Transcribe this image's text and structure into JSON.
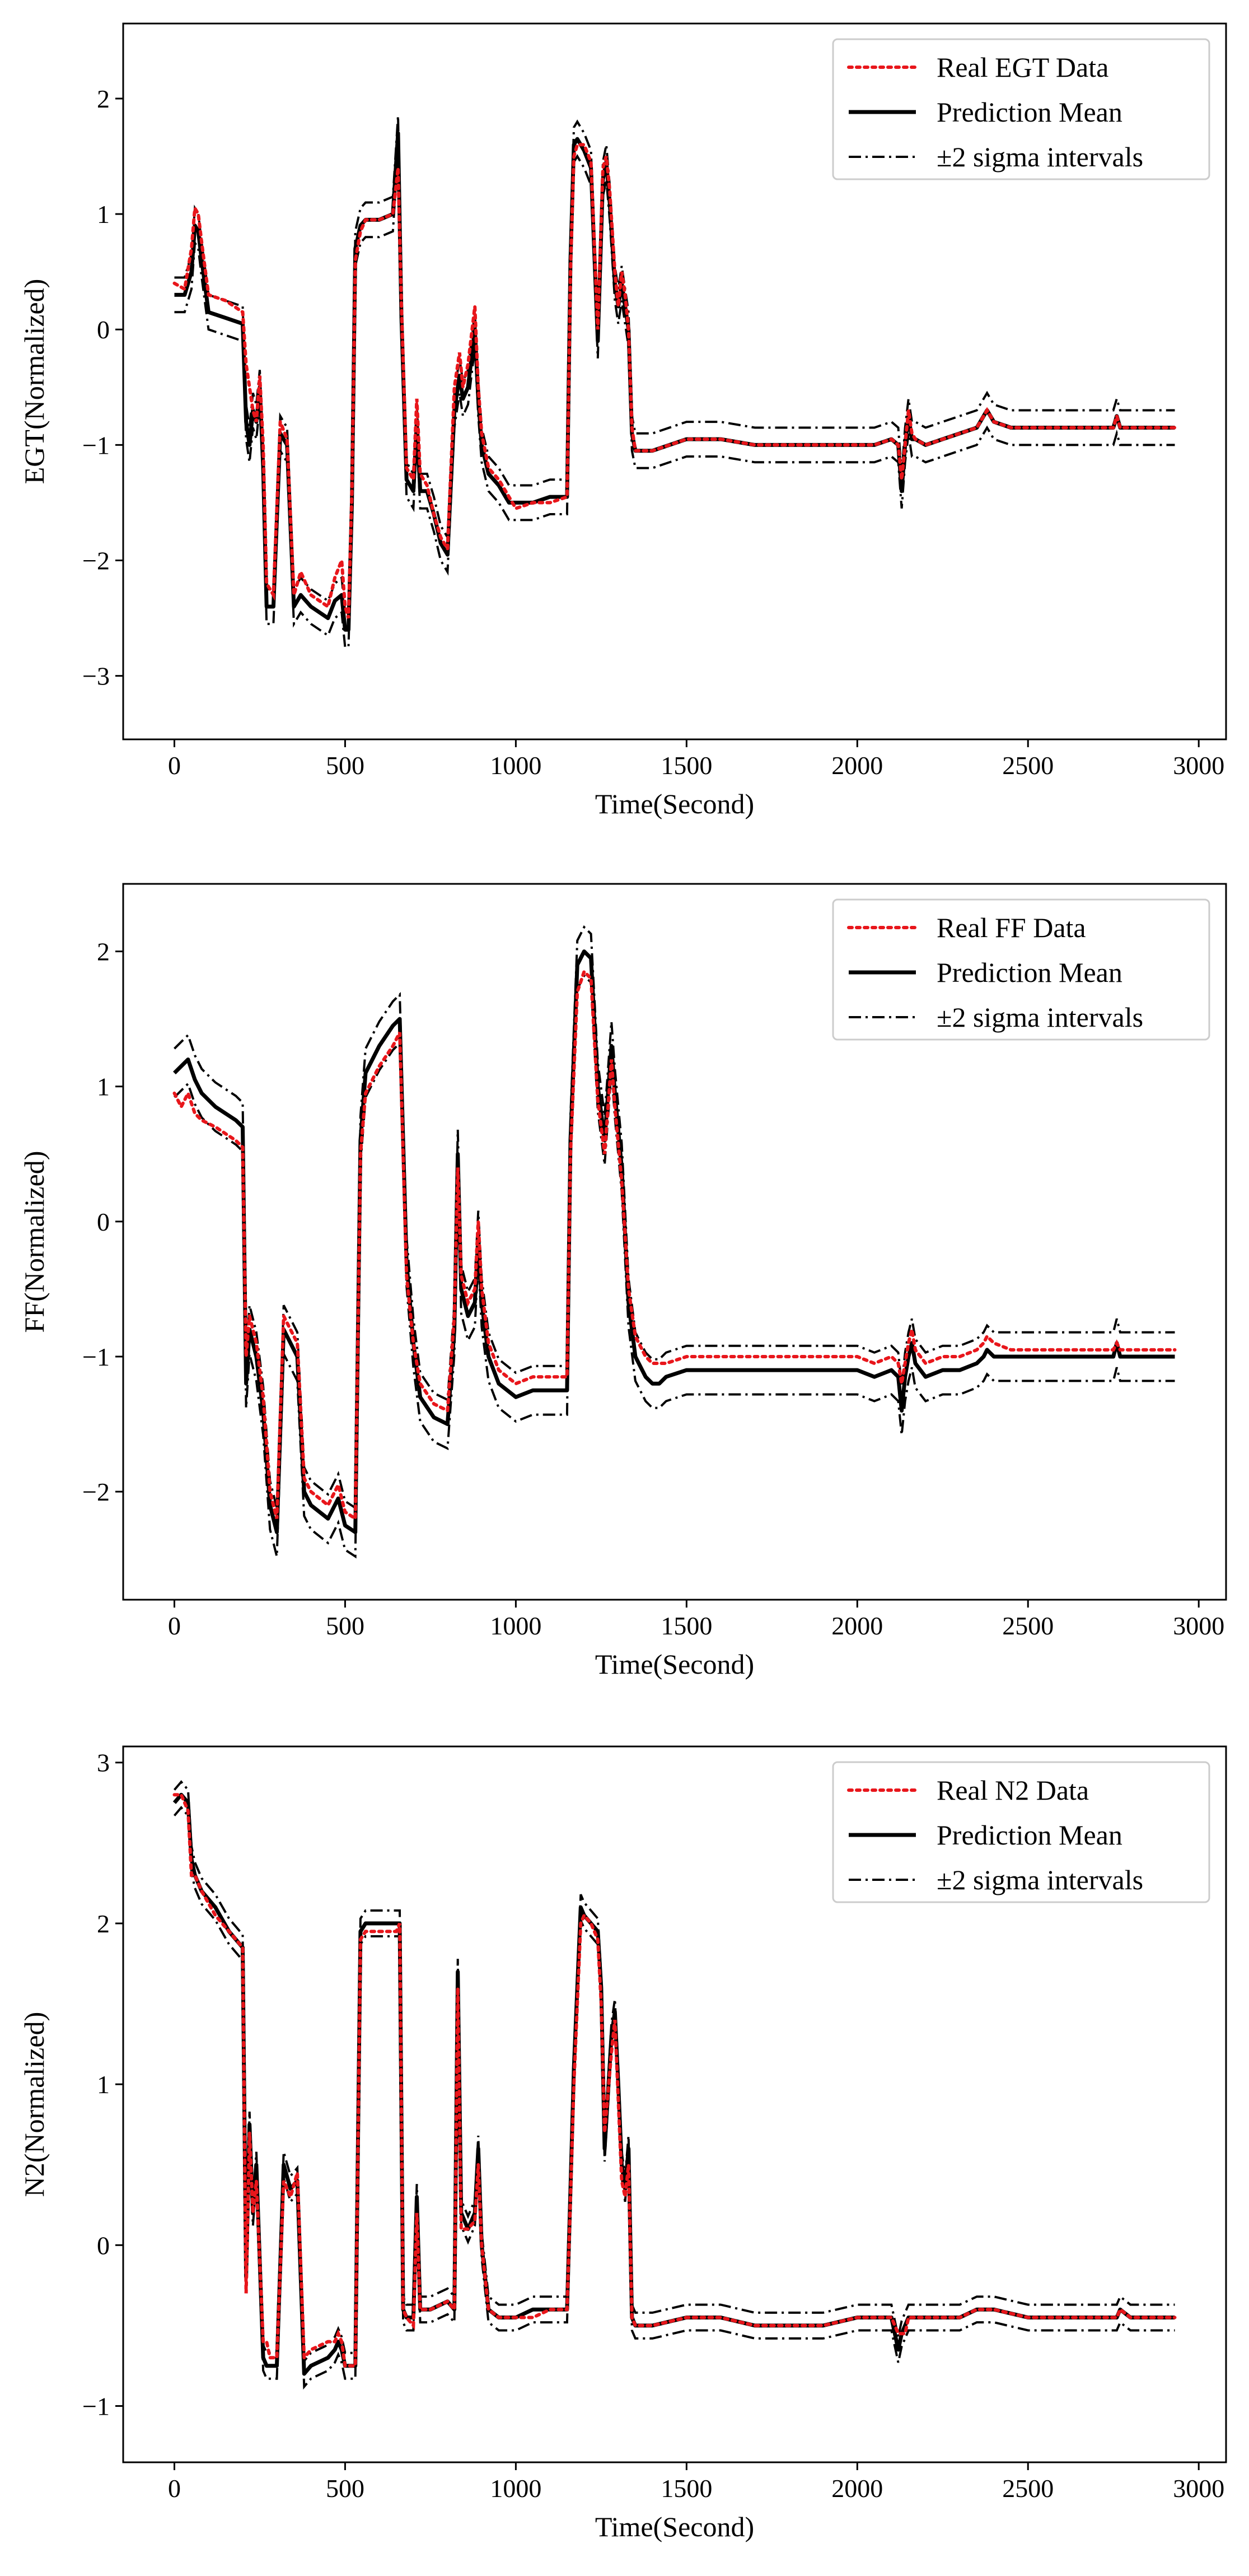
{
  "chart_data": [
    {
      "type": "line",
      "id": "egt",
      "xlabel": "Time(Second)",
      "ylabel": "EGT(Normalized)",
      "xlim": [
        -150,
        3080
      ],
      "ylim": [
        -3.55,
        2.65
      ],
      "xticks": [
        0,
        500,
        1000,
        1500,
        2000,
        2500,
        3000
      ],
      "xtick_labels": [
        "0",
        "500",
        "1000",
        "1500",
        "2000",
        "2500",
        "3000"
      ],
      "yticks": [
        -3,
        -2,
        -1,
        0,
        1,
        2
      ],
      "ytick_labels": [
        "−3",
        "−2",
        "−1",
        "0",
        "1",
        "2"
      ],
      "legend": {
        "position": "top-right",
        "entries": [
          "Real EGT Data",
          "Prediction Mean",
          "±2 sigma intervals"
        ]
      },
      "sigma_width": 0.15,
      "x": [
        0,
        30,
        50,
        60,
        70,
        80,
        100,
        150,
        200,
        210,
        220,
        230,
        240,
        250,
        260,
        270,
        290,
        310,
        330,
        350,
        370,
        400,
        450,
        470,
        490,
        500,
        510,
        520,
        530,
        545,
        560,
        600,
        640,
        655,
        665,
        680,
        700,
        710,
        720,
        740,
        760,
        780,
        800,
        820,
        835,
        845,
        860,
        880,
        890,
        900,
        920,
        950,
        980,
        1000,
        1050,
        1100,
        1150,
        1160,
        1170,
        1180,
        1200,
        1220,
        1240,
        1255,
        1265,
        1275,
        1290,
        1300,
        1310,
        1320,
        1330,
        1340,
        1350,
        1400,
        1500,
        1600,
        1700,
        1800,
        1900,
        2000,
        2050,
        2100,
        2120,
        2130,
        2140,
        2150,
        2160,
        2170,
        2200,
        2250,
        2300,
        2350,
        2370,
        2380,
        2400,
        2450,
        2500,
        2600,
        2700,
        2750,
        2760,
        2770,
        2800,
        2850,
        2900,
        2930
      ],
      "real": [
        0.4,
        0.35,
        0.7,
        1.05,
        1.0,
        0.75,
        0.3,
        0.25,
        0.15,
        -0.3,
        -0.5,
        -0.7,
        -0.8,
        -0.4,
        -1.0,
        -2.2,
        -2.3,
        -0.8,
        -0.95,
        -2.3,
        -2.1,
        -2.3,
        -2.4,
        -2.15,
        -2.0,
        -2.4,
        -2.5,
        -1.4,
        0.6,
        0.85,
        0.95,
        0.95,
        1.0,
        1.4,
        0.2,
        -1.2,
        -1.3,
        -0.6,
        -1.25,
        -1.35,
        -1.6,
        -1.8,
        -1.9,
        -0.5,
        -0.2,
        -0.5,
        -0.3,
        0.2,
        -0.5,
        -0.9,
        -1.2,
        -1.3,
        -1.45,
        -1.55,
        -1.5,
        -1.5,
        -1.45,
        0.5,
        1.5,
        1.6,
        1.6,
        1.45,
        0.0,
        1.4,
        1.5,
        1.2,
        0.5,
        0.2,
        0.5,
        0.3,
        0.0,
        -0.85,
        -1.05,
        -1.05,
        -0.95,
        -0.95,
        -1.0,
        -1.0,
        -1.0,
        -1.0,
        -1.0,
        -0.95,
        -1.0,
        -1.3,
        -1.0,
        -0.7,
        -0.9,
        -0.95,
        -1.0,
        -0.95,
        -0.9,
        -0.85,
        -0.75,
        -0.7,
        -0.8,
        -0.85,
        -0.85,
        -0.85,
        -0.85,
        -0.85,
        -0.75,
        -0.85,
        -0.85,
        -0.85,
        -0.85,
        -0.85
      ],
      "mean": [
        0.3,
        0.3,
        0.5,
        0.9,
        0.85,
        0.6,
        0.15,
        0.1,
        0.05,
        -0.8,
        -1.0,
        -0.7,
        -0.8,
        -0.5,
        -1.2,
        -2.4,
        -2.4,
        -0.9,
        -1.0,
        -2.4,
        -2.3,
        -2.4,
        -2.5,
        -2.35,
        -2.3,
        -2.6,
        -2.6,
        -1.5,
        0.7,
        0.9,
        0.95,
        0.95,
        1.0,
        1.7,
        0.1,
        -1.3,
        -1.4,
        -0.8,
        -1.4,
        -1.4,
        -1.6,
        -1.85,
        -1.95,
        -0.7,
        -0.4,
        -0.6,
        -0.5,
        0.0,
        -0.6,
        -1.0,
        -1.25,
        -1.35,
        -1.5,
        -1.5,
        -1.5,
        -1.45,
        -1.45,
        0.6,
        1.6,
        1.65,
        1.55,
        1.4,
        -0.1,
        1.3,
        1.45,
        1.1,
        0.4,
        0.2,
        0.4,
        0.2,
        0.0,
        -0.9,
        -1.05,
        -1.05,
        -0.95,
        -0.95,
        -1.0,
        -1.0,
        -1.0,
        -1.0,
        -1.0,
        -0.95,
        -1.0,
        -1.4,
        -1.0,
        -0.75,
        -0.95,
        -0.95,
        -1.0,
        -0.95,
        -0.9,
        -0.85,
        -0.75,
        -0.7,
        -0.8,
        -0.85,
        -0.85,
        -0.85,
        -0.85,
        -0.85,
        -0.75,
        -0.85,
        -0.85,
        -0.85,
        -0.85,
        -0.85
      ]
    },
    {
      "type": "line",
      "id": "ff",
      "xlabel": "Time(Second)",
      "ylabel": "FF(Normalized)",
      "xlim": [
        -150,
        3080
      ],
      "ylim": [
        -2.8,
        2.5
      ],
      "xticks": [
        0,
        500,
        1000,
        1500,
        2000,
        2500,
        3000
      ],
      "xtick_labels": [
        "0",
        "500",
        "1000",
        "1500",
        "2000",
        "2500",
        "3000"
      ],
      "yticks": [
        -2,
        -1,
        0,
        1,
        2
      ],
      "ytick_labels": [
        "−2",
        "−1",
        "0",
        "1",
        "2"
      ],
      "legend": {
        "position": "top-right",
        "entries": [
          "Real FF Data",
          "Prediction Mean",
          "±2 sigma intervals"
        ]
      },
      "sigma_width": 0.18,
      "x": [
        0,
        20,
        40,
        60,
        80,
        120,
        180,
        200,
        210,
        220,
        230,
        240,
        260,
        280,
        300,
        320,
        340,
        360,
        380,
        400,
        450,
        480,
        500,
        530,
        545,
        560,
        600,
        640,
        660,
        680,
        700,
        720,
        760,
        800,
        820,
        830,
        840,
        860,
        880,
        890,
        900,
        920,
        950,
        1000,
        1050,
        1100,
        1150,
        1160,
        1180,
        1200,
        1220,
        1240,
        1260,
        1280,
        1290,
        1310,
        1330,
        1350,
        1380,
        1400,
        1420,
        1440,
        1500,
        1600,
        1700,
        1800,
        1900,
        2000,
        2050,
        2100,
        2120,
        2130,
        2140,
        2150,
        2160,
        2170,
        2200,
        2250,
        2300,
        2350,
        2370,
        2380,
        2400,
        2450,
        2500,
        2600,
        2700,
        2750,
        2760,
        2770,
        2800,
        2850,
        2900,
        2930
      ],
      "real": [
        0.95,
        0.85,
        0.95,
        0.8,
        0.75,
        0.7,
        0.6,
        0.55,
        -1.0,
        -0.7,
        -0.8,
        -0.9,
        -1.3,
        -2.0,
        -2.2,
        -0.7,
        -0.8,
        -0.9,
        -1.9,
        -2.0,
        -2.1,
        -1.95,
        -2.15,
        -2.2,
        0.5,
        0.95,
        1.15,
        1.3,
        1.4,
        -0.4,
        -0.9,
        -1.2,
        -1.35,
        -1.4,
        -0.7,
        0.4,
        -0.4,
        -0.6,
        -0.5,
        0.0,
        -0.5,
        -0.9,
        -1.1,
        -1.2,
        -1.15,
        -1.15,
        -1.15,
        0.5,
        1.7,
        1.85,
        1.8,
        0.9,
        0.5,
        1.2,
        0.85,
        0.3,
        -0.5,
        -0.85,
        -1.0,
        -1.05,
        -1.05,
        -1.05,
        -1.0,
        -1.0,
        -1.0,
        -1.0,
        -1.0,
        -1.0,
        -1.05,
        -1.0,
        -1.05,
        -1.2,
        -1.05,
        -0.9,
        -0.8,
        -0.95,
        -1.05,
        -1.0,
        -1.0,
        -0.95,
        -0.9,
        -0.85,
        -0.9,
        -0.95,
        -0.95,
        -0.95,
        -0.95,
        -0.95,
        -0.9,
        -0.95,
        -0.95,
        -0.95,
        -0.95,
        -0.95
      ],
      "mean": [
        1.1,
        1.15,
        1.2,
        1.05,
        0.95,
        0.85,
        0.75,
        0.7,
        -1.2,
        -0.8,
        -0.9,
        -1.0,
        -1.4,
        -2.1,
        -2.3,
        -0.8,
        -0.9,
        -1.0,
        -2.0,
        -2.1,
        -2.2,
        -2.05,
        -2.25,
        -2.3,
        0.6,
        1.1,
        1.3,
        1.45,
        1.5,
        -0.3,
        -0.9,
        -1.3,
        -1.45,
        -1.5,
        -0.8,
        0.5,
        -0.5,
        -0.7,
        -0.6,
        -0.1,
        -0.6,
        -1.0,
        -1.2,
        -1.3,
        -1.25,
        -1.25,
        -1.25,
        0.6,
        1.9,
        2.0,
        1.95,
        1.0,
        0.6,
        1.3,
        0.95,
        0.4,
        -0.6,
        -1.0,
        -1.15,
        -1.2,
        -1.2,
        -1.15,
        -1.1,
        -1.1,
        -1.1,
        -1.1,
        -1.1,
        -1.1,
        -1.15,
        -1.1,
        -1.15,
        -1.4,
        -1.15,
        -1.0,
        -0.9,
        -1.05,
        -1.15,
        -1.1,
        -1.1,
        -1.05,
        -1.0,
        -0.95,
        -1.0,
        -1.0,
        -1.0,
        -1.0,
        -1.0,
        -1.0,
        -0.9,
        -1.0,
        -1.0,
        -1.0,
        -1.0,
        -1.0
      ]
    },
    {
      "type": "line",
      "id": "n2",
      "xlabel": "Time(Second)",
      "ylabel": "N2(Normalized)",
      "xlim": [
        -150,
        3080
      ],
      "ylim": [
        -1.35,
        3.1
      ],
      "xticks": [
        0,
        500,
        1000,
        1500,
        2000,
        2500,
        3000
      ],
      "xtick_labels": [
        "0",
        "500",
        "1000",
        "1500",
        "2000",
        "2500",
        "3000"
      ],
      "yticks": [
        -1,
        0,
        1,
        2,
        3
      ],
      "ytick_labels": [
        "−1",
        "0",
        "1",
        "2",
        "3"
      ],
      "legend": {
        "position": "top-right",
        "entries": [
          "Real N2 Data",
          "Prediction Mean",
          "±2 sigma intervals"
        ]
      },
      "sigma_width": 0.08,
      "x": [
        0,
        20,
        40,
        50,
        60,
        80,
        120,
        160,
        200,
        210,
        220,
        230,
        240,
        250,
        260,
        270,
        280,
        300,
        320,
        340,
        360,
        380,
        400,
        450,
        470,
        480,
        490,
        500,
        530,
        545,
        560,
        600,
        650,
        660,
        670,
        680,
        700,
        710,
        720,
        750,
        800,
        820,
        830,
        840,
        860,
        880,
        890,
        900,
        920,
        950,
        1000,
        1050,
        1100,
        1150,
        1170,
        1190,
        1200,
        1220,
        1240,
        1250,
        1260,
        1280,
        1290,
        1300,
        1310,
        1320,
        1330,
        1340,
        1350,
        1400,
        1500,
        1600,
        1700,
        1800,
        1900,
        2000,
        2100,
        2120,
        2130,
        2140,
        2150,
        2160,
        2200,
        2300,
        2350,
        2380,
        2400,
        2500,
        2600,
        2700,
        2750,
        2760,
        2770,
        2800,
        2900,
        2930
      ],
      "real": [
        2.8,
        2.8,
        2.7,
        2.3,
        2.3,
        2.2,
        2.05,
        1.95,
        1.85,
        -0.3,
        0.7,
        0.2,
        0.4,
        -0.1,
        -0.6,
        -0.6,
        -0.7,
        -0.7,
        0.4,
        0.3,
        0.45,
        -0.7,
        -0.65,
        -0.6,
        -0.6,
        -0.55,
        -0.6,
        -0.75,
        -0.75,
        1.9,
        1.95,
        1.95,
        1.95,
        2.0,
        -0.4,
        -0.45,
        -0.5,
        0.2,
        -0.4,
        -0.4,
        -0.35,
        -0.4,
        1.6,
        0.1,
        0.1,
        0.15,
        0.5,
        0.0,
        -0.4,
        -0.45,
        -0.45,
        -0.45,
        -0.4,
        -0.4,
        1.0,
        2.0,
        2.05,
        2.0,
        1.9,
        1.5,
        0.7,
        1.2,
        1.4,
        0.9,
        0.4,
        0.3,
        0.5,
        -0.45,
        -0.5,
        -0.5,
        -0.45,
        -0.45,
        -0.5,
        -0.5,
        -0.5,
        -0.45,
        -0.45,
        -0.55,
        -0.55,
        -0.55,
        -0.45,
        -0.45,
        -0.45,
        -0.45,
        -0.4,
        -0.4,
        -0.4,
        -0.45,
        -0.45,
        -0.45,
        -0.45,
        -0.45,
        -0.4,
        -0.45,
        -0.45,
        -0.45
      ],
      "mean": [
        2.75,
        2.8,
        2.75,
        2.4,
        2.3,
        2.2,
        2.1,
        1.95,
        1.85,
        -0.2,
        0.75,
        0.2,
        0.5,
        -0.1,
        -0.7,
        -0.75,
        -0.75,
        -0.75,
        0.5,
        0.35,
        0.4,
        -0.8,
        -0.75,
        -0.7,
        -0.65,
        -0.6,
        -0.65,
        -0.75,
        -0.75,
        1.95,
        2.0,
        2.0,
        2.0,
        2.0,
        -0.4,
        -0.45,
        -0.45,
        0.3,
        -0.4,
        -0.4,
        -0.35,
        -0.4,
        1.7,
        0.2,
        0.1,
        0.2,
        0.6,
        0.0,
        -0.4,
        -0.45,
        -0.45,
        -0.4,
        -0.4,
        -0.4,
        1.1,
        2.1,
        2.05,
        2.0,
        1.95,
        1.6,
        0.6,
        1.3,
        1.45,
        1.0,
        0.5,
        0.35,
        0.6,
        -0.45,
        -0.5,
        -0.5,
        -0.45,
        -0.45,
        -0.5,
        -0.5,
        -0.5,
        -0.45,
        -0.45,
        -0.65,
        -0.55,
        -0.5,
        -0.45,
        -0.45,
        -0.45,
        -0.45,
        -0.4,
        -0.4,
        -0.4,
        -0.45,
        -0.45,
        -0.45,
        -0.45,
        -0.45,
        -0.4,
        -0.45,
        -0.45,
        -0.45
      ]
    }
  ]
}
